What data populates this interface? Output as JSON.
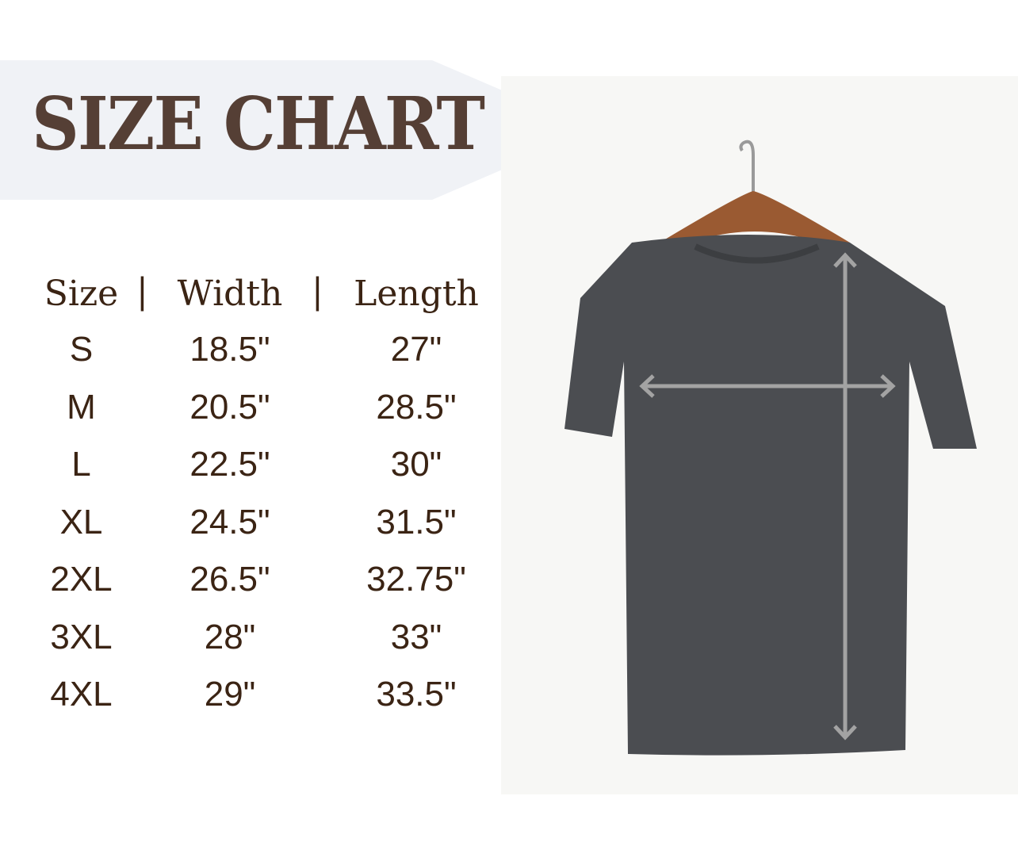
{
  "title": "SIZE CHART",
  "colors": {
    "title": "#553f35",
    "table_text": "#3b2414",
    "banner": "#f0f2f6",
    "shirt": "#4b4d51",
    "arrows": "#a3a3a3"
  },
  "table": {
    "headers": [
      "Size",
      "Width",
      "Length"
    ],
    "separator": "|",
    "rows": [
      [
        "S",
        "18.5\"",
        "27\""
      ],
      [
        "M",
        "20.5\"",
        "28.5\""
      ],
      [
        "L",
        "22.5\"",
        "30\""
      ],
      [
        "XL",
        "24.5\"",
        "31.5\""
      ],
      [
        "2XL",
        "26.5\"",
        "32.75\""
      ],
      [
        "3XL",
        "28\"",
        "33\""
      ],
      [
        "4XL",
        "29\"",
        "33.5\""
      ]
    ]
  },
  "photo": {
    "subject": "t-shirt on hanger",
    "measure_icons": [
      "width-arrow-icon",
      "length-arrow-icon"
    ]
  }
}
